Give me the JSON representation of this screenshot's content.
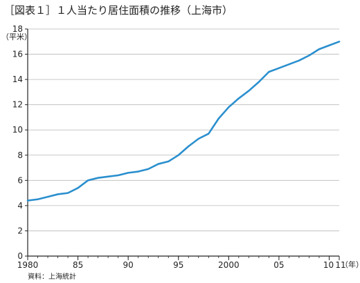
{
  "chart_data": {
    "type": "line",
    "title": "［図表１］１人当たり居住面積の推移（上海市）",
    "ylabel": "（平米）",
    "xlabel": "（年）",
    "source": "資料：上海統計",
    "ylim": [
      0,
      18
    ],
    "xlim": [
      1980,
      2011
    ],
    "grid": true,
    "line_color": "#2a8fce",
    "y_ticks": [
      0,
      2,
      4,
      6,
      8,
      10,
      12,
      14,
      16,
      18
    ],
    "x_ticks": [
      {
        "value": 1980,
        "label": "1980"
      },
      {
        "value": 1985,
        "label": "85"
      },
      {
        "value": 1990,
        "label": "90"
      },
      {
        "value": 1995,
        "label": "95"
      },
      {
        "value": 2000,
        "label": "2000"
      },
      {
        "value": 2005,
        "label": "05"
      },
      {
        "value": 2010,
        "label": "10"
      },
      {
        "value": 2011,
        "label": "11"
      }
    ],
    "series": [
      {
        "x": [
          1980,
          1981,
          1982,
          1983,
          1984,
          1985,
          1986,
          1987,
          1988,
          1989,
          1990,
          1991,
          1992,
          1993,
          1994,
          1995,
          1996,
          1997,
          1998,
          1999,
          2000,
          2001,
          2002,
          2003,
          2004,
          2005,
          2006,
          2007,
          2008,
          2009,
          2010,
          2011
        ],
        "y": [
          4.4,
          4.5,
          4.7,
          4.9,
          5.0,
          5.4,
          6.0,
          6.2,
          6.3,
          6.4,
          6.6,
          6.7,
          6.9,
          7.3,
          7.5,
          8.0,
          8.7,
          9.3,
          9.7,
          10.9,
          11.8,
          12.5,
          13.1,
          13.8,
          14.6,
          14.9,
          15.2,
          15.5,
          15.9,
          16.4,
          16.7,
          17.0
        ]
      }
    ]
  }
}
